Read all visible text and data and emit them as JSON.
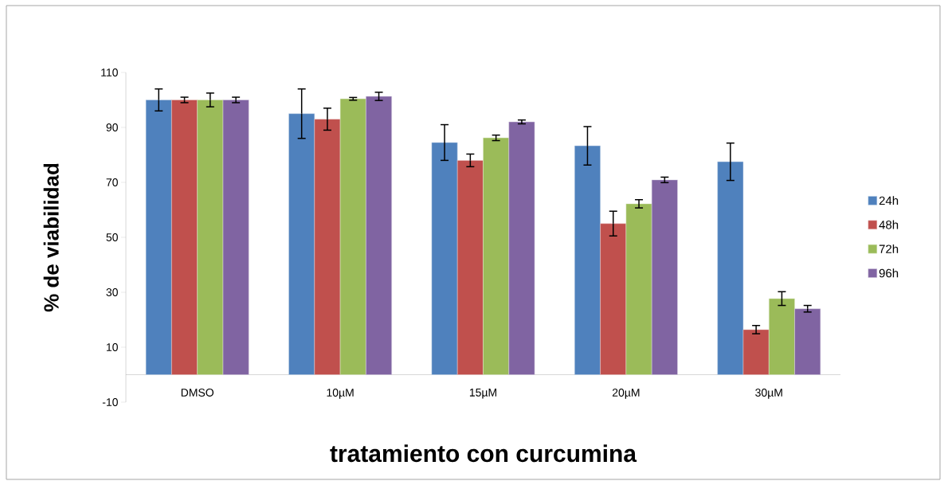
{
  "chart_data": {
    "type": "bar",
    "xlabel": "tratamiento con curcumina",
    "ylabel": "% de viabilidad",
    "categories": [
      "DMSO",
      "10µM",
      "15µM",
      "20µM",
      "30µM"
    ],
    "series": [
      {
        "name": "24h",
        "color": "#4f81bd",
        "values": [
          100,
          95,
          84.5,
          83.3,
          77.5
        ],
        "errors": [
          4,
          9,
          6.5,
          7,
          6.8
        ]
      },
      {
        "name": "48h",
        "color": "#c0504d",
        "values": [
          100,
          93,
          78,
          55,
          16.4
        ],
        "errors": [
          1,
          4,
          2.3,
          4.5,
          1.5
        ]
      },
      {
        "name": "72h",
        "color": "#9bbb59",
        "values": [
          100,
          100.4,
          86.2,
          62.2,
          27.7
        ],
        "errors": [
          2.5,
          0.5,
          1,
          1.5,
          2.5
        ]
      },
      {
        "name": "96h",
        "color": "#8064a2",
        "values": [
          100,
          101.3,
          92,
          70.9,
          24
        ],
        "errors": [
          1,
          1.5,
          0.7,
          1,
          1.2
        ]
      }
    ],
    "ylim": [
      -10,
      110
    ],
    "yticks": [
      -10,
      10,
      30,
      50,
      70,
      90,
      110
    ],
    "grid": false,
    "legend": "right"
  }
}
